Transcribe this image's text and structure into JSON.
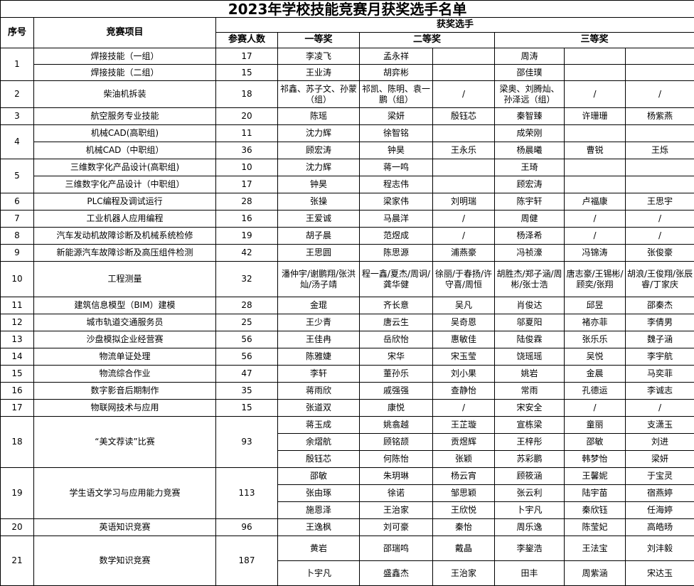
{
  "title": "2023年学校技能竞赛月获奖选手名单",
  "header": {
    "serial": "序号",
    "project": "竞赛项目",
    "winners": "获奖选手",
    "participants": "参赛人数",
    "first_prize": "一等奖",
    "second_prize": "二等奖",
    "third_prize": "三等奖"
  },
  "groups": [
    {
      "no": "1",
      "merged": false,
      "rows": [
        {
          "project": "焊接技能（一组）",
          "participants": "17",
          "names": [
            "李凌飞",
            "孟永祥",
            "",
            "周涛",
            "",
            ""
          ]
        },
        {
          "project": "焊接技能（二组）",
          "participants": "15",
          "names": [
            "王业涛",
            "胡弈彬",
            "",
            "邵佳璞",
            "",
            ""
          ]
        }
      ]
    },
    {
      "no": "2",
      "merged": false,
      "rows": [
        {
          "project": "柴油机拆装",
          "participants": "18",
          "names": [
            "祁鑫、苏子文、孙蒙（组）",
            "祁凯、陈明、袁一鹏（组）",
            "/",
            "梁奥、刘腾灿、孙泽远（组）",
            "/",
            "/"
          ]
        }
      ]
    },
    {
      "no": "3",
      "merged": false,
      "rows": [
        {
          "project": "航空服务专业技能",
          "participants": "20",
          "names": [
            "陈瑶",
            "梁妍",
            "殷钰芯",
            "秦智臻",
            "许珊珊",
            "杨紫燕"
          ]
        }
      ]
    },
    {
      "no": "4",
      "merged": false,
      "rows": [
        {
          "project": "机械CAD(高职组)",
          "participants": "11",
          "names": [
            "沈力辉",
            "徐智铭",
            "",
            "成荣刚",
            "",
            ""
          ]
        },
        {
          "project": "机械CAD（中职组）",
          "participants": "36",
          "names": [
            "顾宏涛",
            "钟昊",
            "王永乐",
            "杨晨曦",
            "曹锐",
            "王烁"
          ]
        }
      ]
    },
    {
      "no": "5",
      "merged": false,
      "rows": [
        {
          "project": "三维数字化产品设计(高职组)",
          "participants": "10",
          "names": [
            "沈力辉",
            "蒋一鸣",
            "",
            "王琦",
            "",
            ""
          ]
        },
        {
          "project": "三维数字化产品设计（中职组）",
          "participants": "17",
          "names": [
            "钟昊",
            "程志伟",
            "",
            "顾宏涛",
            "",
            ""
          ]
        }
      ]
    },
    {
      "no": "6",
      "merged": false,
      "rows": [
        {
          "project": "PLC编程及调试运行",
          "participants": "28",
          "names": [
            "张操",
            "梁家伟",
            "刘明瑞",
            "陈宇轩",
            "卢福康",
            "王思宇"
          ]
        }
      ]
    },
    {
      "no": "7",
      "merged": false,
      "rows": [
        {
          "project": "工业机器人应用编程",
          "participants": "16",
          "names": [
            "王爱诚",
            "马晨洋",
            "/",
            "周健",
            "/",
            "/"
          ]
        }
      ]
    },
    {
      "no": "8",
      "merged": false,
      "rows": [
        {
          "project": "汽车发动机故障诊断及机械系统检修",
          "participants": "19",
          "names": [
            "胡子晨",
            "范煜成",
            "/",
            "杨泽希",
            "/",
            "/"
          ]
        }
      ]
    },
    {
      "no": "9",
      "merged": false,
      "rows": [
        {
          "project": "新能源汽车故障诊断及高压组件检测",
          "participants": "42",
          "names": [
            "王思圆",
            "陈思源",
            "浦燕豪",
            "冯祯濠",
            "冯锦涛",
            "张俊豪"
          ]
        }
      ]
    },
    {
      "no": "10",
      "merged": false,
      "rows": [
        {
          "project": "工程测量",
          "participants": "32",
          "names": [
            "潘仲宇/谢鹏翔/张洪灿/汤子靖",
            "程一鑫/夏杰/周诇/龚华健",
            "徐丽/于春扬/许守喜/周恒",
            "胡胜杰/郑子涵/周彬/张士浩",
            "唐志豪/王锡彬/顾奕/张翔",
            "胡浪/王俊翔/张辰睿/丁家庆"
          ]
        }
      ]
    },
    {
      "no": "11",
      "merged": false,
      "rows": [
        {
          "project": "建筑信息模型（BIM）建模",
          "participants": "28",
          "names": [
            "金琨",
            "齐长意",
            "吴凡",
            "肖俊达",
            "邱昱",
            "邵秦杰"
          ]
        }
      ]
    },
    {
      "no": "12",
      "merged": false,
      "rows": [
        {
          "project": "城市轨道交通服务员",
          "participants": "25",
          "names": [
            "王少青",
            "唐云生",
            "吴奇恩",
            "邬夏阳",
            "褚亦菲",
            "李倩男"
          ]
        }
      ]
    },
    {
      "no": "13",
      "merged": false,
      "rows": [
        {
          "project": "沙盘模拟企业经营赛",
          "participants": "56",
          "names": [
            "王佳冉",
            "岳欣怡",
            "惠敏佳",
            "陆俊霖",
            "张乐乐",
            "魏子涵"
          ]
        }
      ]
    },
    {
      "no": "14",
      "merged": false,
      "rows": [
        {
          "project": "物流单证处理",
          "participants": "56",
          "names": [
            "陈雅婕",
            "宋华",
            "宋玉莹",
            "饶瑶瑶",
            "吴悦",
            "李宇航"
          ]
        }
      ]
    },
    {
      "no": "15",
      "merged": false,
      "rows": [
        {
          "project": "物流综合作业",
          "participants": "47",
          "names": [
            "李轩",
            "董孙乐",
            "刘小果",
            "姚岩",
            "金晨",
            "马奕菲"
          ]
        }
      ]
    },
    {
      "no": "16",
      "merged": false,
      "rows": [
        {
          "project": "数字影音后期制作",
          "participants": "35",
          "names": [
            "蒋雨欣",
            "戚强强",
            "查静怡",
            "常雨",
            "孔德运",
            "李诚志"
          ]
        }
      ]
    },
    {
      "no": "17",
      "merged": false,
      "rows": [
        {
          "project": "物联网技术与应用",
          "participants": "15",
          "names": [
            "张道双",
            "康悦",
            "/",
            "宋安全",
            "/",
            "/"
          ]
        }
      ]
    },
    {
      "no": "18",
      "merged": true,
      "project": "“美文荐读”比赛",
      "participants": "93",
      "rows": [
        {
          "names": [
            "蒋玉成",
            "姚翕越",
            "王芷璇",
            "宣栋梁",
            "童丽",
            "支潇玉"
          ]
        },
        {
          "names": [
            "余熠航",
            "顾铭颉",
            "贡煜辉",
            "王梓彤",
            "邵敏",
            "刘进"
          ]
        },
        {
          "names": [
            "殷钰芯",
            "何陈怡",
            "张颖",
            "苏彩鹏",
            "韩梦怡",
            "梁妍"
          ]
        }
      ]
    },
    {
      "no": "19",
      "merged": true,
      "project": "学生语文学习与应用能力竞赛",
      "participants": "113",
      "rows": [
        {
          "names": [
            "邵敏",
            "朱玥琳",
            "杨云宵",
            "顾筱涵",
            "王馨妮",
            "于宝灵"
          ]
        },
        {
          "names": [
            "张由琢",
            "徐诺",
            "邹思颖",
            "张云利",
            "陆宇苗",
            "宿燕婷"
          ]
        },
        {
          "names": [
            "施恩泽",
            "王治家",
            "王欣悦",
            "卜宇凡",
            "秦欣钰",
            "任海婷"
          ]
        }
      ]
    },
    {
      "no": "20",
      "merged": false,
      "rows": [
        {
          "project": "英语知识竞赛",
          "participants": "96",
          "names": [
            "王逸枫",
            "刘可豪",
            "秦怡",
            "周乐逸",
            "陈莹妃",
            "高皓旸"
          ]
        }
      ]
    },
    {
      "no": "21",
      "merged": true,
      "project": "数学知识竞赛",
      "participants": "187",
      "rows": [
        {
          "names": [
            "黄岩",
            "邵瑞鸣",
            "戴晶",
            "李鋆浩",
            "王法宝",
            "刘沣毅"
          ]
        },
        {
          "names": [
            "卜宇凡",
            "盛鑫杰",
            "王治家",
            "田丰",
            "周紫涵",
            "宋达玉"
          ]
        }
      ]
    }
  ]
}
